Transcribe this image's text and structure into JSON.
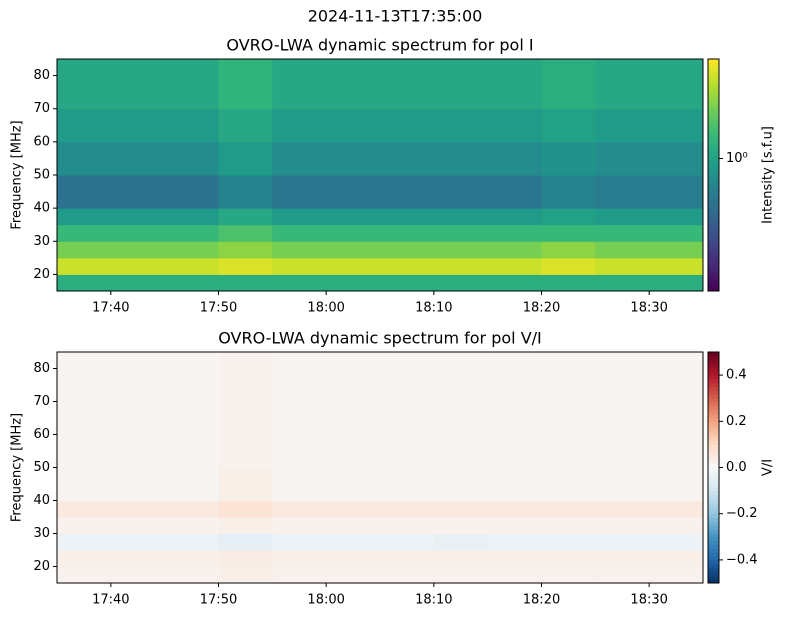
{
  "suptitle": "2024-11-13T17:35:00",
  "chart_data": [
    {
      "type": "heatmap",
      "title": "OVRO-LWA dynamic spectrum for pol I",
      "ylabel": "Frequency [MHz]",
      "xlim": [
        "17:35",
        "18:35"
      ],
      "xticks": [
        "17:40",
        "17:50",
        "18:00",
        "18:10",
        "18:20",
        "18:30"
      ],
      "ylim": [
        15,
        85
      ],
      "yticks": [
        20,
        30,
        40,
        50,
        60,
        70,
        80
      ],
      "xbins": [
        "17:35",
        "17:40",
        "17:45",
        "17:50",
        "17:55",
        "18:00",
        "18:05",
        "18:10",
        "18:15",
        "18:20",
        "18:25",
        "18:30",
        "18:35"
      ],
      "ybins": [
        15,
        20,
        25,
        30,
        35,
        40,
        50,
        60,
        70,
        85
      ],
      "z": [
        [
          1.1,
          1.1,
          1.1,
          1.1,
          1.1,
          1.1,
          1.1,
          1.1,
          1.1,
          1.1,
          1.1,
          1.1
        ],
        [
          1.9,
          1.9,
          1.9,
          2.0,
          1.9,
          1.9,
          1.9,
          1.9,
          1.9,
          2.0,
          1.9,
          1.9
        ],
        [
          1.5,
          1.5,
          1.5,
          1.6,
          1.5,
          1.5,
          1.5,
          1.5,
          1.5,
          1.6,
          1.5,
          1.5
        ],
        [
          1.2,
          1.2,
          1.2,
          1.3,
          1.2,
          1.2,
          1.2,
          1.2,
          1.2,
          1.2,
          1.2,
          1.2
        ],
        [
          0.95,
          0.95,
          0.95,
          1.05,
          0.95,
          0.95,
          0.95,
          0.95,
          0.95,
          1.0,
          0.95,
          0.95
        ],
        [
          0.7,
          0.7,
          0.7,
          0.8,
          0.72,
          0.72,
          0.72,
          0.72,
          0.72,
          0.8,
          0.75,
          0.75
        ],
        [
          0.85,
          0.85,
          0.85,
          0.95,
          0.85,
          0.85,
          0.85,
          0.85,
          0.85,
          0.9,
          0.85,
          0.85
        ],
        [
          0.95,
          0.95,
          0.95,
          1.05,
          0.95,
          0.95,
          0.95,
          0.95,
          0.95,
          1.0,
          0.95,
          0.95
        ],
        [
          1.05,
          1.05,
          1.05,
          1.15,
          1.05,
          1.05,
          1.05,
          1.05,
          1.05,
          1.1,
          1.05,
          1.05
        ]
      ],
      "cmap": "viridis",
      "log_scale": true,
      "clim": [
        0.35,
        2.2
      ],
      "cticks": [
        {
          "value": 1,
          "label": "10⁰"
        }
      ],
      "clabel": "Intensity [s.f.u]"
    },
    {
      "type": "heatmap",
      "title": "OVRO-LWA dynamic spectrum for pol V/I",
      "ylabel": "Frequency [MHz]",
      "xlim": [
        "17:35",
        "18:35"
      ],
      "xticks": [
        "17:40",
        "17:50",
        "18:00",
        "18:10",
        "18:20",
        "18:30"
      ],
      "ylim": [
        15,
        85
      ],
      "yticks": [
        20,
        30,
        40,
        50,
        60,
        70,
        80
      ],
      "xbins": [
        "17:35",
        "17:40",
        "17:45",
        "17:50",
        "17:55",
        "18:00",
        "18:05",
        "18:10",
        "18:15",
        "18:20",
        "18:25",
        "18:30",
        "18:35"
      ],
      "ybins": [
        15,
        20,
        25,
        30,
        35,
        40,
        50,
        60,
        70,
        85
      ],
      "z": [
        [
          0.02,
          0.02,
          0.02,
          0.03,
          0.02,
          0.02,
          0.02,
          0.02,
          0.02,
          0.02,
          0.02,
          0.02
        ],
        [
          0.03,
          0.03,
          0.03,
          0.04,
          0.03,
          0.03,
          0.03,
          0.03,
          0.03,
          0.03,
          0.03,
          0.03
        ],
        [
          -0.03,
          -0.03,
          -0.03,
          -0.05,
          -0.03,
          -0.03,
          -0.03,
          -0.04,
          -0.03,
          -0.03,
          -0.03,
          -0.03
        ],
        [
          0.02,
          0.02,
          0.02,
          0.03,
          0.02,
          0.02,
          0.02,
          0.02,
          0.02,
          0.02,
          0.02,
          0.02
        ],
        [
          0.05,
          0.05,
          0.05,
          0.07,
          0.05,
          0.05,
          0.05,
          0.05,
          0.05,
          0.05,
          0.05,
          0.05
        ],
        [
          0.01,
          0.01,
          0.01,
          0.03,
          0.01,
          0.01,
          0.01,
          0.01,
          0.01,
          0.01,
          0.01,
          0.01
        ],
        [
          0.01,
          0.01,
          0.01,
          0.02,
          0.01,
          0.01,
          0.01,
          0.01,
          0.01,
          0.01,
          0.01,
          0.01
        ],
        [
          0.01,
          0.01,
          0.01,
          0.02,
          0.01,
          0.01,
          0.01,
          0.01,
          0.01,
          0.01,
          0.01,
          0.01
        ],
        [
          0.01,
          0.01,
          0.01,
          0.02,
          0.01,
          0.01,
          0.01,
          0.01,
          0.01,
          0.01,
          0.01,
          0.01
        ]
      ],
      "cmap": "RdBu_r",
      "log_scale": false,
      "clim": [
        -0.5,
        0.5
      ],
      "cticks": [
        {
          "value": -0.4,
          "label": "−0.4"
        },
        {
          "value": -0.2,
          "label": "−0.2"
        },
        {
          "value": 0,
          "label": "0.0"
        },
        0.2,
        0.4
      ],
      "clabel": "V/I"
    }
  ]
}
